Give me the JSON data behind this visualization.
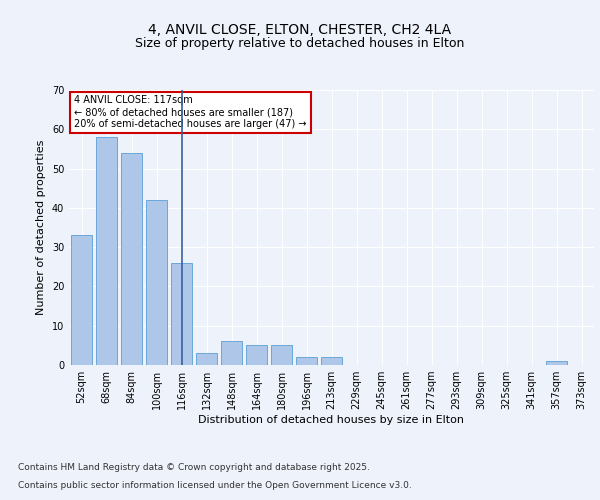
{
  "title": "4, ANVIL CLOSE, ELTON, CHESTER, CH2 4LA",
  "subtitle": "Size of property relative to detached houses in Elton",
  "xlabel": "Distribution of detached houses by size in Elton",
  "ylabel": "Number of detached properties",
  "categories": [
    "52sqm",
    "68sqm",
    "84sqm",
    "100sqm",
    "116sqm",
    "132sqm",
    "148sqm",
    "164sqm",
    "180sqm",
    "196sqm",
    "213sqm",
    "229sqm",
    "245sqm",
    "261sqm",
    "277sqm",
    "293sqm",
    "309sqm",
    "325sqm",
    "341sqm",
    "357sqm",
    "373sqm"
  ],
  "values": [
    33,
    58,
    54,
    42,
    26,
    3,
    6,
    5,
    5,
    2,
    2,
    0,
    0,
    0,
    0,
    0,
    0,
    0,
    0,
    1,
    0
  ],
  "bar_color": "#aec6e8",
  "bar_edge_color": "#5a9fd4",
  "vline_color": "#3a5fa0",
  "annotation_text": "4 ANVIL CLOSE: 117sqm\n← 80% of detached houses are smaller (187)\n20% of semi-detached houses are larger (47) →",
  "annotation_box_color": "#ffffff",
  "annotation_box_edge": "#cc0000",
  "ylim": [
    0,
    70
  ],
  "yticks": [
    0,
    10,
    20,
    30,
    40,
    50,
    60,
    70
  ],
  "background_color": "#eef2fb",
  "grid_color": "#ffffff",
  "footer_line1": "Contains HM Land Registry data © Crown copyright and database right 2025.",
  "footer_line2": "Contains public sector information licensed under the Open Government Licence v3.0.",
  "title_fontsize": 10,
  "subtitle_fontsize": 9,
  "axis_label_fontsize": 8,
  "tick_fontsize": 7,
  "annotation_fontsize": 7,
  "footer_fontsize": 6.5
}
